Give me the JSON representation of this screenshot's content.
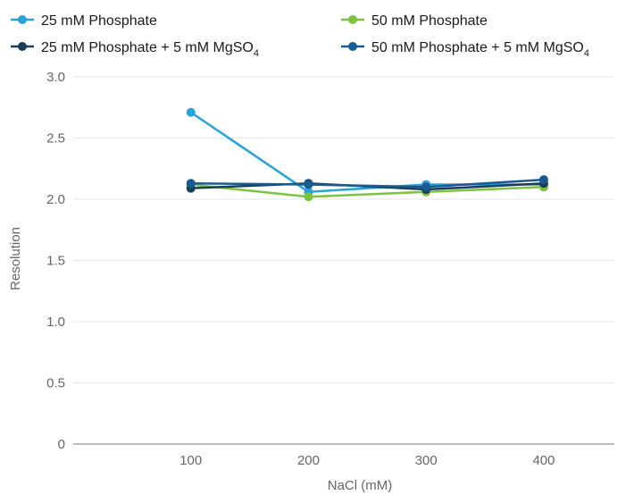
{
  "chart_data": {
    "type": "line",
    "title": "",
    "xlabel": "NaCl (mM)",
    "ylabel": "Resolution",
    "x": [
      100,
      200,
      300,
      400
    ],
    "xlim": [
      0,
      460
    ],
    "ylim": [
      0,
      3.0
    ],
    "yticks": [
      "0",
      "0.5",
      "1.0",
      "1.5",
      "2.0",
      "2.5",
      "3.0"
    ],
    "xticks": [
      "100",
      "200",
      "300",
      "400"
    ],
    "grid": "horizontal",
    "legend_position": "top",
    "series": [
      {
        "name": "25 mM Phosphate",
        "color": "#2aa3d8",
        "values": [
          2.71,
          2.06,
          2.12,
          2.12
        ]
      },
      {
        "name": "50 mM Phosphate",
        "color": "#7dc242",
        "values": [
          2.12,
          2.02,
          2.06,
          2.1
        ]
      },
      {
        "name": "25 mM Phosphate + 5 mM MgSO4",
        "name_parts": [
          "25 mM Phosphate + 5 mM MgSO",
          "4"
        ],
        "color": "#1b3d5a",
        "values": [
          2.09,
          2.13,
          2.08,
          2.13
        ]
      },
      {
        "name": "50 mM Phosphate + 5 mM MgSO4",
        "name_parts": [
          "50 mM Phosphate + 5 mM MgSO",
          "4"
        ],
        "color": "#185b91",
        "values": [
          2.13,
          2.12,
          2.1,
          2.16
        ]
      }
    ]
  }
}
